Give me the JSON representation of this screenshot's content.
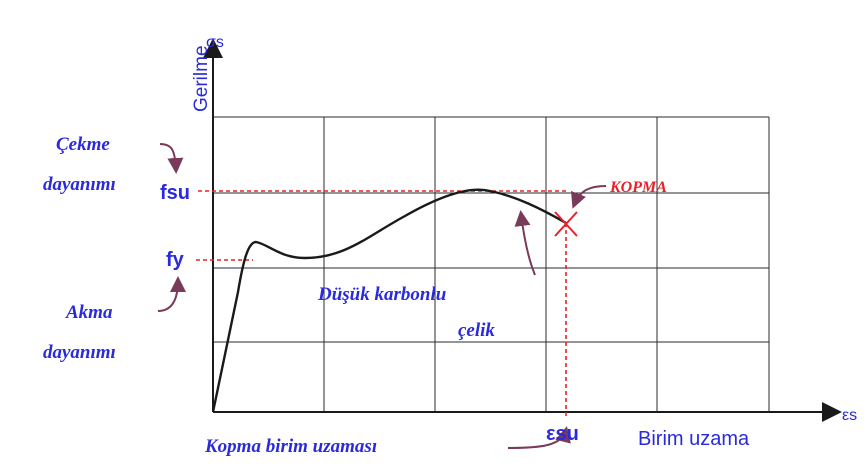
{
  "axes": {
    "y_label": "Gerilme",
    "y_symbol": "σs",
    "x_label": "Birim uzama",
    "x_symbol": "εs"
  },
  "markers": {
    "fsu": "fsu",
    "fy": "fy",
    "esu": "εsu"
  },
  "annotations": {
    "cekme_line1": "Çekme",
    "cekme_line2": "dayanımı",
    "akma_line1": "Akma",
    "akma_line2": "dayanımı",
    "steel_line1": "Düşük karbonlu",
    "steel_line2": "çelik",
    "kopma": "KOPMA",
    "kopma_strain": "Kopma birim uzaması"
  },
  "colors": {
    "blue": "#2a2adc",
    "red": "#e8202a",
    "grid": "#2b2b2b",
    "curve": "#1a1a1a",
    "pointer": "#7a3a5a"
  }
}
